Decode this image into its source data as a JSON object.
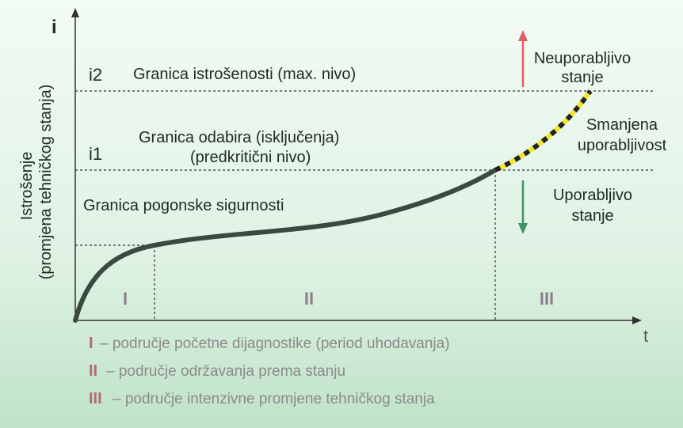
{
  "axes": {
    "y_symbol": "i",
    "x_symbol": "t",
    "y_label": [
      "Istrošenje",
      "(promjena tehničkog stanja)"
    ]
  },
  "levels": {
    "max": {
      "symbol": "i2",
      "label": "Granica istrošenosti (max. nivo)"
    },
    "critical": {
      "symbol": "i1",
      "label": [
        "Granica odabira (isključenja)",
        "(predkritični nivo)"
      ]
    },
    "safety": {
      "label": "Granica pogonske sigurnosti"
    }
  },
  "states": {
    "unusable": [
      "Neuporabljivo",
      "stanje"
    ],
    "reduced": [
      "Smanjena",
      "uporabljivost"
    ],
    "usable": [
      "Uporabljivo",
      "stanje"
    ]
  },
  "zones": [
    "I",
    "II",
    "III"
  ],
  "legend": [
    {
      "numeral": "I",
      "text": "– područje početne dijagnostike (period uhodavanja)"
    },
    {
      "numeral": "II",
      "text": "– područje održavanja prema stanju"
    },
    {
      "numeral": "III",
      "text": "– područje intenzivne promjene tehničkog stanja"
    }
  ]
}
